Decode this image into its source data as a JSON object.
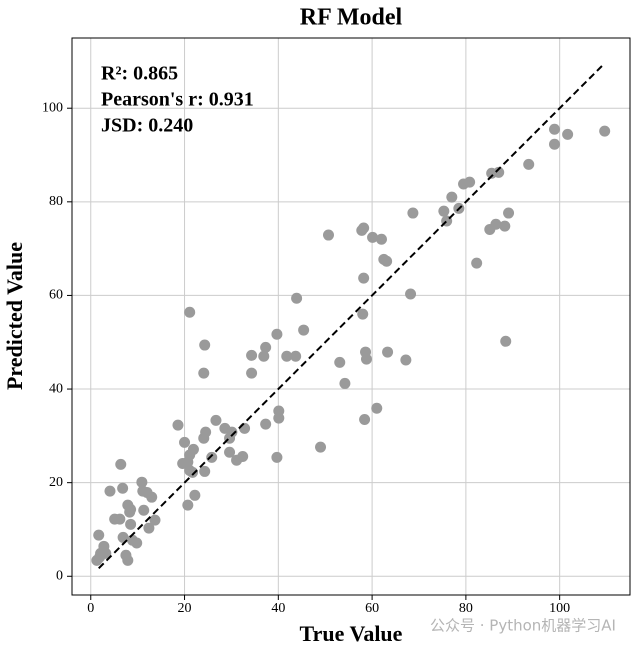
{
  "chart_data": {
    "type": "scatter",
    "title": "RF Model",
    "xlabel": "True Value",
    "ylabel": "Predicted Value",
    "annotations": [
      "R²: 0.865",
      "Pearson's r: 0.931",
      "JSD: 0.240"
    ],
    "color": "#9a9a9a",
    "grid": true,
    "xlim": [
      -4,
      115
    ],
    "ylim": [
      -4,
      115
    ],
    "xticks": [
      0,
      20,
      40,
      60,
      80,
      100
    ],
    "yticks": [
      0,
      20,
      40,
      60,
      80,
      100
    ],
    "reference_line": {
      "x": [
        1.7,
        109.4
      ],
      "y": [
        1.7,
        109.4
      ],
      "color": "#000000"
    },
    "x": [
      1.7,
      1.3,
      2.1,
      2.8,
      3.2,
      1.9,
      4.1,
      6.4,
      6.8,
      5.1,
      6.2,
      6.9,
      7.9,
      8.3,
      7.5,
      7.9,
      8.5,
      8.9,
      9.8,
      10.9,
      11.1,
      12.0,
      11.3,
      13.0,
      12.4,
      13.7,
      8.5,
      18.6,
      20.0,
      19.6,
      20.7,
      21.1,
      21.1,
      21.9,
      21.1,
      20.7,
      22.2,
      24.3,
      24.1,
      24.1,
      24.5,
      24.3,
      21.7,
      25.8,
      26.7,
      28.6,
      29.6,
      29.6,
      30.1,
      31.1,
      32.4,
      32.8,
      34.3,
      34.3,
      36.9,
      37.3,
      37.3,
      39.7,
      40.1,
      40.1,
      39.7,
      41.8,
      43.7,
      43.9,
      45.4,
      49.0,
      50.7,
      53.1,
      54.2,
      58.2,
      57.8,
      58.2,
      58.0,
      58.6,
      58.8,
      58.4,
      60.1,
      62.0,
      62.5,
      63.1,
      61.0,
      63.3,
      67.2,
      68.2,
      68.7,
      75.3,
      75.9,
      77.0,
      78.5,
      79.5,
      80.8,
      82.3,
      85.1,
      85.5,
      86.4,
      87.0,
      88.3,
      89.1,
      88.5,
      93.4,
      98.9,
      98.9,
      101.7,
      109.6
    ],
    "y": [
      8.8,
      3.4,
      4.9,
      6.4,
      4.9,
      4.1,
      18.2,
      23.9,
      18.8,
      12.2,
      12.2,
      8.3,
      15.2,
      13.7,
      4.5,
      3.4,
      11.1,
      7.7,
      7.1,
      20.1,
      18.2,
      17.9,
      14.1,
      16.9,
      10.3,
      12.0,
      14.3,
      32.3,
      28.6,
      24.1,
      24.4,
      56.4,
      25.9,
      27.1,
      22.6,
      15.2,
      17.3,
      49.4,
      43.4,
      29.5,
      30.8,
      22.4,
      22.2,
      25.4,
      33.3,
      31.6,
      29.5,
      26.5,
      30.8,
      24.8,
      25.6,
      31.6,
      47.2,
      43.4,
      47.0,
      48.9,
      32.5,
      51.7,
      35.3,
      33.8,
      25.4,
      47.0,
      47.0,
      59.4,
      52.6,
      27.6,
      72.9,
      45.7,
      41.2,
      74.4,
      73.9,
      63.7,
      56.0,
      47.9,
      46.4,
      33.5,
      72.4,
      72.0,
      67.7,
      67.3,
      35.9,
      47.9,
      46.2,
      60.3,
      77.6,
      78.0,
      75.9,
      81.0,
      78.6,
      83.8,
      84.2,
      66.9,
      74.1,
      86.1,
      75.2,
      86.3,
      74.8,
      77.6,
      50.2,
      88.0,
      95.5,
      92.3,
      94.4,
      95.1
    ]
  },
  "watermark": "公众号 · Python机器学习AI"
}
